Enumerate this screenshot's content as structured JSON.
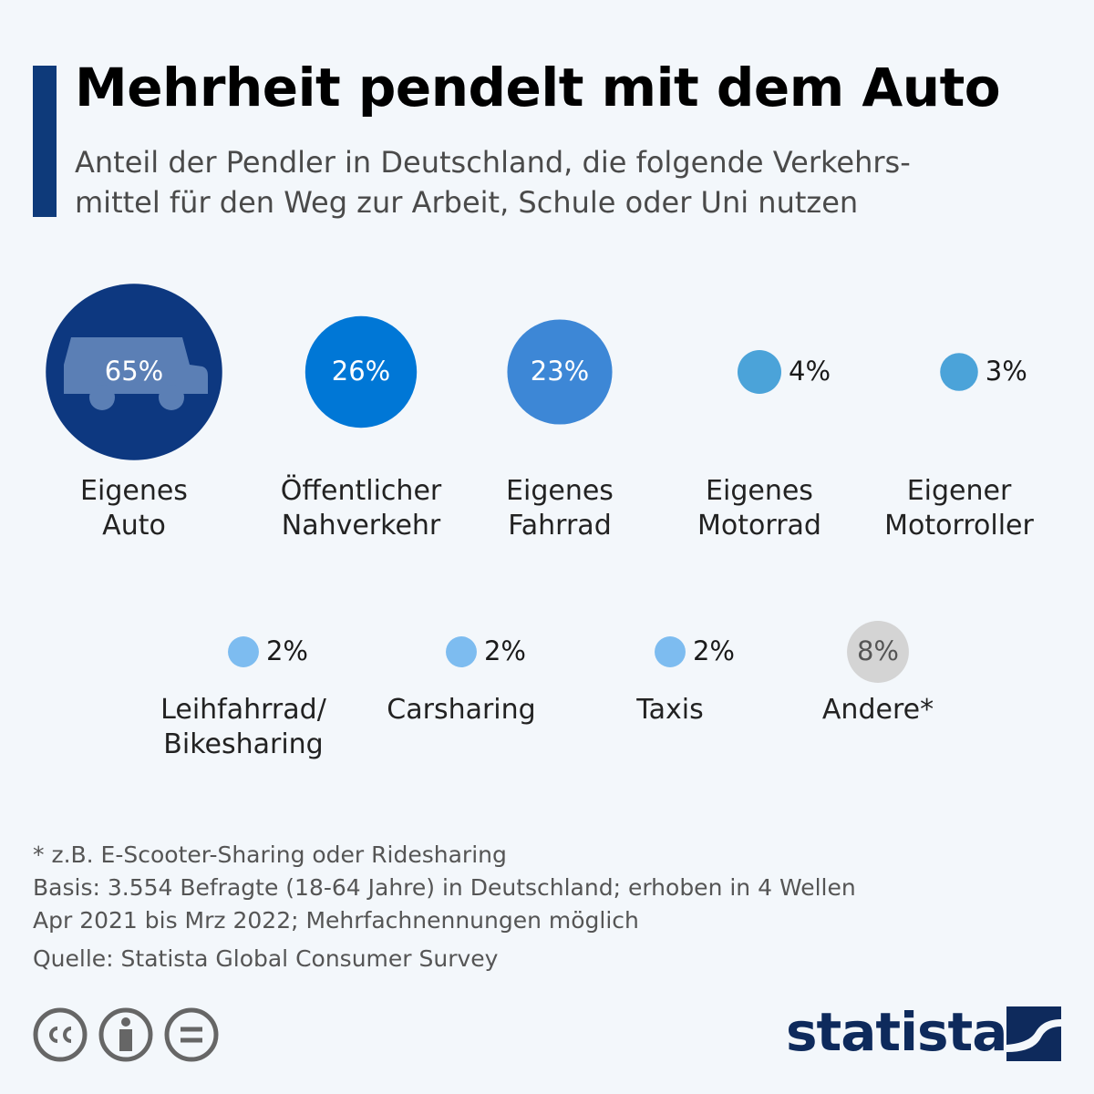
{
  "chart_data": {
    "type": "bubble",
    "title": "Mehrheit pendelt mit dem Auto",
    "subtitle": "Anteil der Pendler in Deutschland, die folgende Verkehrs-\nmittel für den Weg zur Arbeit, Schule oder Uni nutzen",
    "categories": [
      "Eigenes\nAuto",
      "Öffentlicher\nNahverkehr",
      "Eigenes\nFahrrad",
      "Eigenes\nMotorrad",
      "Eigener\nMotorroller",
      "Leihfahrrad/\nBikesharing",
      "Carsharing",
      "Taxis",
      "Andere*"
    ],
    "values": [
      65,
      26,
      23,
      4,
      3,
      2,
      2,
      2,
      8
    ],
    "value_labels": [
      "65%",
      "26%",
      "23%",
      "4%",
      "3%",
      "2%",
      "2%",
      "2%",
      "8%"
    ],
    "colors": [
      "#0d3880",
      "#0077d6",
      "#3d87d6",
      "#4ba3d9",
      "#4ba3d9",
      "#7dbcf0",
      "#7dbcf0",
      "#7dbcf0",
      "#d4d4d4"
    ],
    "label_colors": [
      "#ffffff",
      "#ffffff",
      "#ffffff",
      "#1a1a1a",
      "#1a1a1a",
      "#1a1a1a",
      "#1a1a1a",
      "#1a1a1a",
      "#555555"
    ],
    "notes": [
      "* z.B. E-Scooter-Sharing oder Ridesharing",
      "Basis: 3.554 Befragte (18-64 Jahre) in Deutschland; erhoben in 4 Wellen\nApr 2021 bis Mrz 2022; Mehrfachnennungen möglich",
      "Quelle: Statista Global Consumer Survey"
    ],
    "logo": "statista"
  }
}
